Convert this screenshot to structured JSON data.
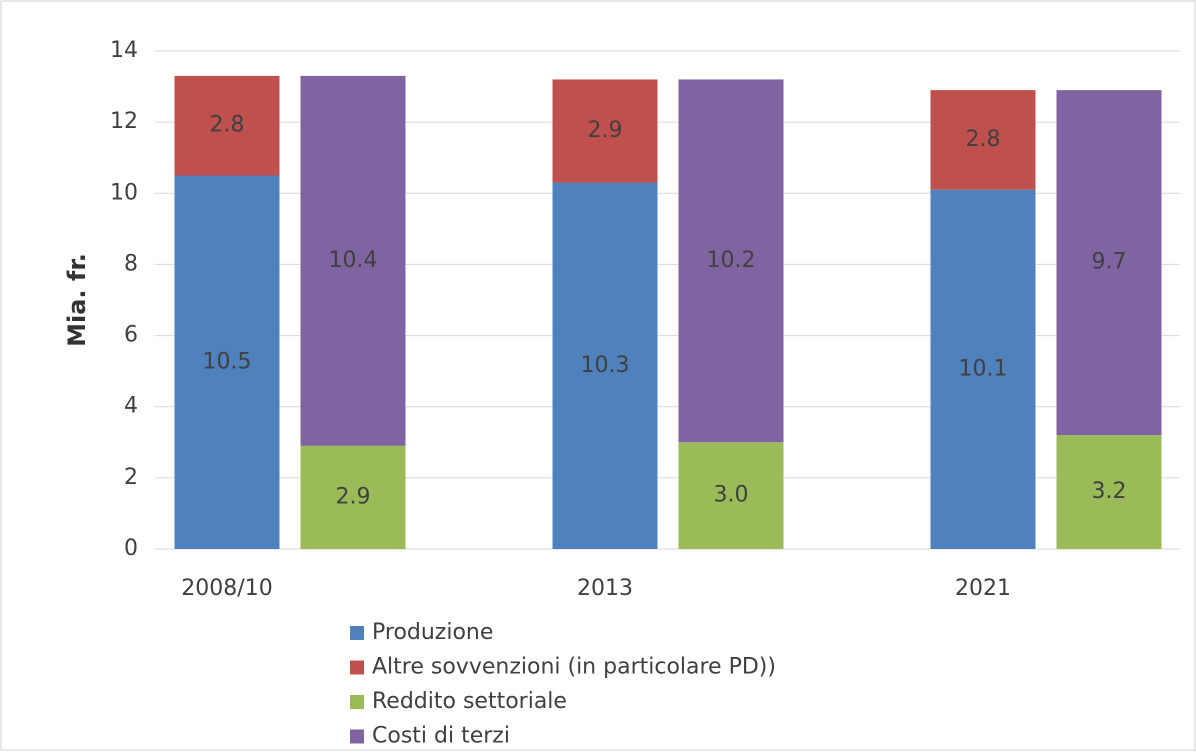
{
  "chart_data": {
    "type": "stacked_bar",
    "ylabel": "Mia. fr.",
    "categories": [
      "2008/10",
      "2013",
      "2021"
    ],
    "series": [
      {
        "name": "Produzione",
        "color": "#4f81bd",
        "stack": 0,
        "values": [
          10.5,
          10.3,
          10.1
        ]
      },
      {
        "name": "Altre sovvenzioni (in particolare PD))",
        "color": "#c0504d",
        "stack": 0,
        "values": [
          2.8,
          2.9,
          2.8
        ]
      },
      {
        "name": "Reddito settoriale",
        "color": "#9bbb59",
        "stack": 1,
        "values": [
          2.9,
          3,
          3.2
        ],
        "value_labels": [
          "2.9",
          "3.0",
          "3.2"
        ]
      },
      {
        "name": "Costi di terzi",
        "color": "#8064a2",
        "stack": 1,
        "values": [
          10.4,
          10.2,
          9.7
        ]
      }
    ],
    "ylim": [
      0,
      14
    ],
    "yticks": [
      0,
      2,
      4,
      6,
      8,
      10,
      12,
      14
    ],
    "grid": true
  }
}
